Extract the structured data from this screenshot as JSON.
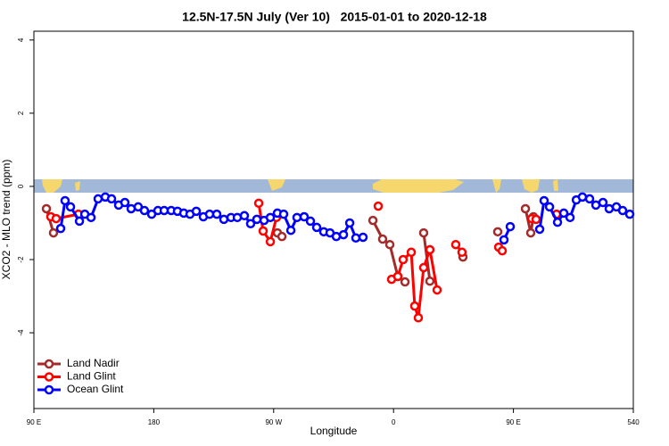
{
  "chart_data": {
    "type": "line",
    "title": "12.5N-17.5N July (Ver 10)   2015-01-01 to 2020-12-18",
    "x_label": "Longitude",
    "y_label": "XCO2 - MLO trend (ppm)",
    "xlim": [
      90,
      540
    ],
    "ylim": [
      -6.07,
      4.24
    ],
    "xticks": [
      {
        "value": 90,
        "label": "90 E"
      },
      180,
      {
        "value": 270,
        "label": "90 W"
      },
      {
        "value": 360,
        "label": "0"
      },
      {
        "value": 450,
        "label": "90 E"
      },
      540
    ],
    "yticks": [
      4,
      2,
      0,
      -2,
      -4
    ],
    "legend": "bottomleft",
    "series": [
      {
        "name": "Land Nadir",
        "color": "#a52a2a",
        "x": [
          99.4,
          104.7,
          null,
          272.8,
          276.2,
          null,
          344.5,
          351.8,
          357.2,
          363.2,
          368.6,
          null,
          382.6,
          387.3,
          null,
          412.1,
          null,
          438.2,
          null,
          459.0,
          463.0,
          465.0
        ],
        "values": [
          -0.61,
          -1.27,
          null,
          -1.27,
          -1.37,
          null,
          -0.93,
          -1.44,
          -1.59,
          -2.46,
          -2.61,
          null,
          -1.27,
          -2.59,
          null,
          -1.93,
          null,
          -1.24,
          null,
          -0.61,
          -1.27,
          -0.83
        ]
      },
      {
        "name": "Land Glint",
        "color": "#ff0000",
        "x": [
          102.7,
          106.7,
          123.5,
          null,
          258.8,
          262.1,
          267.5,
          272.1,
          null,
          348.5,
          null,
          358.5,
          363.2,
          367.2,
          373.3,
          375.9,
          378.6,
          382.6,
          387.3,
          392.7,
          null,
          406.7,
          411.4,
          null,
          438.9,
          441.6,
          null,
          463.7,
          467.0,
          null,
          482.4
        ],
        "values": [
          -0.83,
          -0.88,
          -0.76,
          null,
          -0.46,
          -1.22,
          -1.51,
          -0.85,
          null,
          -0.54,
          null,
          -2.54,
          -2.46,
          -2.0,
          -1.8,
          -3.27,
          -3.59,
          -2.22,
          -1.73,
          -2.83,
          null,
          -1.59,
          -1.8,
          null,
          -1.66,
          -1.76,
          null,
          -0.88,
          -0.9,
          null,
          -0.76
        ]
      },
      {
        "name": "Ocean Glint",
        "color": "#0000ff",
        "x": [
          110.1,
          113.4,
          117.5,
          124.2,
          128.2,
          132.9,
          138.2,
          143.6,
          148.3,
          153.6,
          158.3,
          163.0,
          168.3,
          173.0,
          178.4,
          183.1,
          187.8,
          193.1,
          197.8,
          202.5,
          207.2,
          211.9,
          217.2,
          221.9,
          227.3,
          232.6,
          238.0,
          242.7,
          248.0,
          252.7,
          257.4,
          262.8,
          267.5,
          272.8,
          277.5,
          282.9,
          287.5,
          292.9,
          297.6,
          302.3,
          307.6,
          312.3,
          317.0,
          322.4,
          327.1,
          331.7,
          337.1,
          null,
          442.9,
          447.6,
          null,
          469.7,
          473.0,
          477.1,
          483.1,
          487.8,
          492.5,
          497.2,
          501.8,
          507.2,
          511.9,
          517.2,
          521.9,
          527.3,
          532.0,
          537.3
        ],
        "values": [
          -1.15,
          -0.39,
          -0.56,
          -0.95,
          -0.76,
          -0.85,
          -0.34,
          -0.29,
          -0.34,
          -0.51,
          -0.44,
          -0.61,
          -0.56,
          -0.66,
          -0.76,
          -0.66,
          -0.66,
          -0.66,
          -0.68,
          -0.73,
          -0.76,
          -0.68,
          -0.83,
          -0.76,
          -0.76,
          -0.9,
          -0.85,
          -0.85,
          -0.8,
          -1.02,
          -0.9,
          -0.93,
          -0.85,
          -0.73,
          -0.76,
          -1.2,
          -0.85,
          -0.83,
          -0.95,
          -1.12,
          -1.24,
          -1.27,
          -1.37,
          -1.32,
          -1.0,
          -1.41,
          -1.39,
          null,
          -1.46,
          -1.1,
          null,
          -1.17,
          -0.39,
          -0.56,
          -0.98,
          -0.73,
          -0.85,
          -0.37,
          -0.29,
          -0.34,
          -0.51,
          -0.44,
          -0.61,
          -0.56,
          -0.66,
          -0.76
        ]
      }
    ]
  }
}
